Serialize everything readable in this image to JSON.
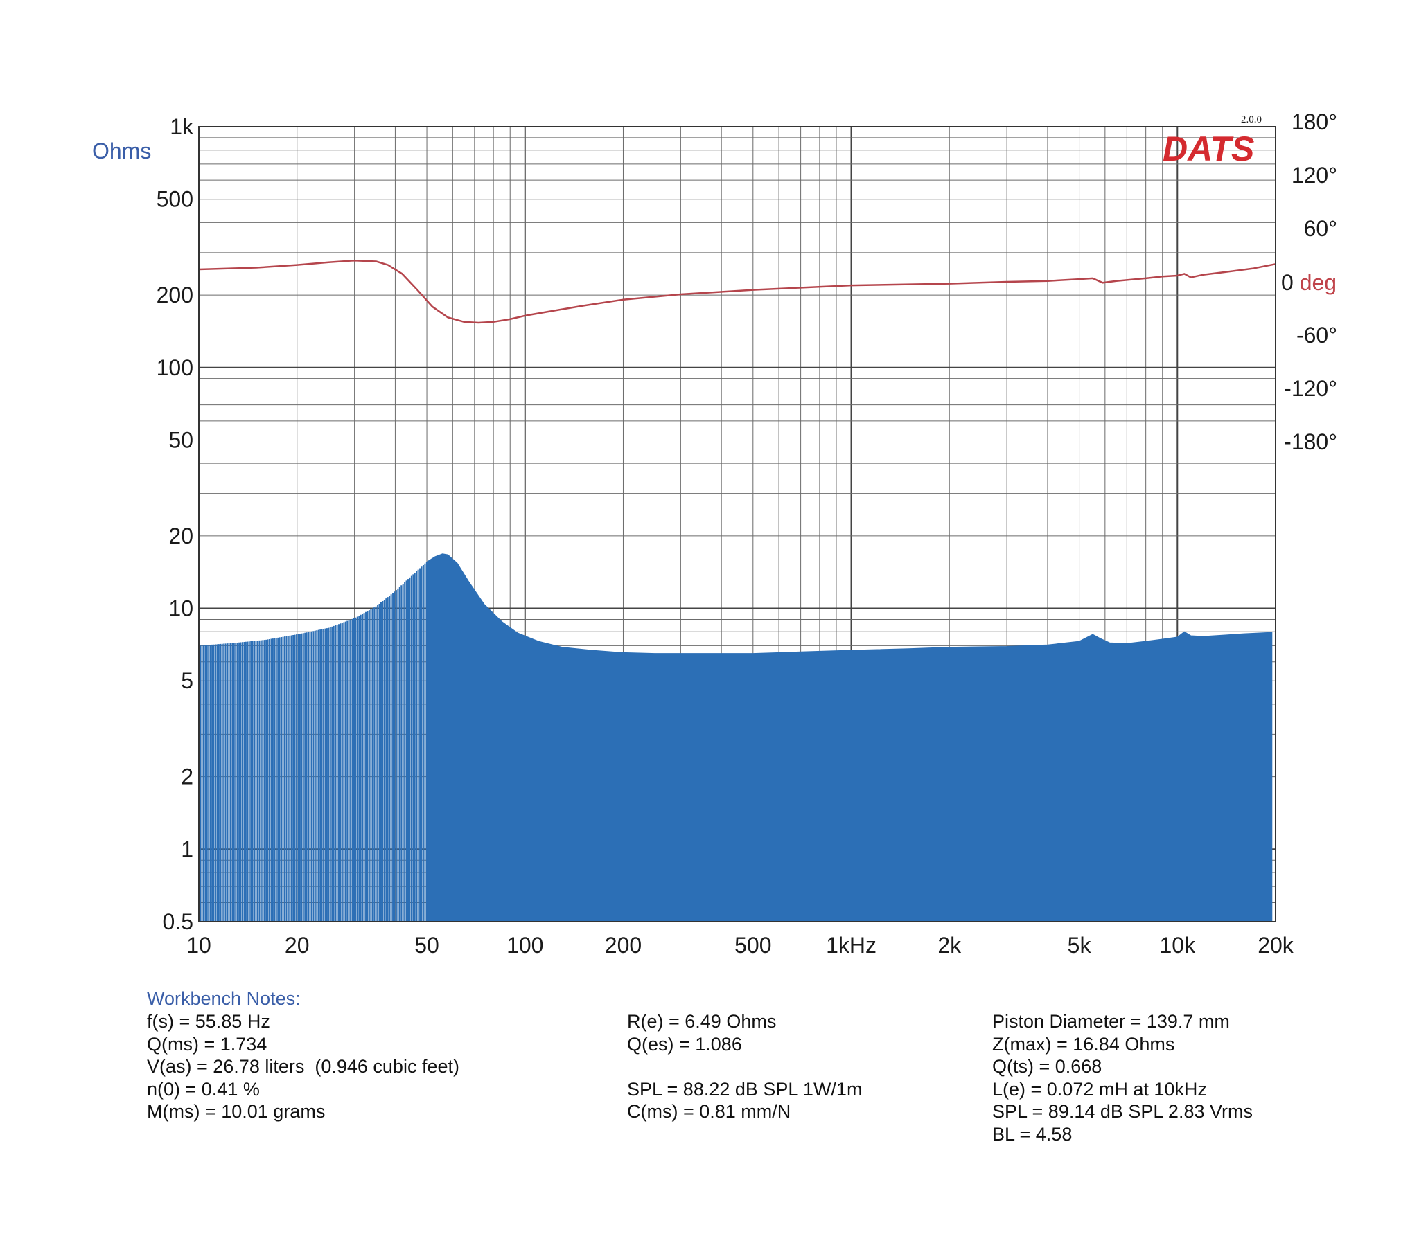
{
  "logo": {
    "text": "DATS",
    "version": "2.0.0",
    "color": "#d42a2f"
  },
  "colors": {
    "impedance_fill": "#2c6fb6",
    "phase_line": "#b5454c",
    "grid": "#6b6b6b",
    "accent_text": "#3a5ea8",
    "deg_text": "#c0434a"
  },
  "chart_data": {
    "type": "area",
    "title": "",
    "xlabel": "",
    "x_scale": "log",
    "xlim": [
      10,
      20000
    ],
    "x_ticks": [
      {
        "value": 10,
        "label": "10"
      },
      {
        "value": 20,
        "label": "20"
      },
      {
        "value": 50,
        "label": "50"
      },
      {
        "value": 100,
        "label": "100"
      },
      {
        "value": 200,
        "label": "200"
      },
      {
        "value": 500,
        "label": "500"
      },
      {
        "value": 1000,
        "label": "1kHz"
      },
      {
        "value": 2000,
        "label": "2k"
      },
      {
        "value": 5000,
        "label": "5k"
      },
      {
        "value": 10000,
        "label": "10k"
      },
      {
        "value": 20000,
        "label": "20k"
      }
    ],
    "y_left": {
      "label": "Ohms",
      "scale": "log",
      "lim": [
        0.5,
        1000
      ],
      "ticks": [
        {
          "value": 1000,
          "label": "1k"
        },
        {
          "value": 500,
          "label": "500"
        },
        {
          "value": 200,
          "label": "200"
        },
        {
          "value": 100,
          "label": "100"
        },
        {
          "value": 50,
          "label": "50"
        },
        {
          "value": 20,
          "label": "20"
        },
        {
          "value": 10,
          "label": "10"
        },
        {
          "value": 5,
          "label": "5"
        },
        {
          "value": 2,
          "label": "2"
        },
        {
          "value": 1,
          "label": "1"
        },
        {
          "value": 0.5,
          "label": "0.5"
        }
      ]
    },
    "y_right": {
      "label_prefix": "0",
      "label": "deg",
      "ticks": [
        {
          "value": 180,
          "label": "180°"
        },
        {
          "value": 120,
          "label": "120°"
        },
        {
          "value": 60,
          "label": "60°"
        },
        {
          "value": -60,
          "label": "-60°"
        },
        {
          "value": -120,
          "label": "-120°"
        },
        {
          "value": -180,
          "label": "-180°"
        }
      ]
    },
    "series": [
      {
        "type": "area",
        "axis": "left",
        "x": [
          10,
          13,
          16,
          20,
          25,
          30,
          35,
          40,
          45,
          50,
          53,
          55.85,
          58,
          62,
          67,
          75,
          85,
          95,
          110,
          130,
          160,
          200,
          250,
          300,
          400,
          500,
          700,
          1000,
          1500,
          2000,
          3000,
          4000,
          5000,
          5500,
          5800,
          6200,
          7000,
          8000,
          9000,
          10000,
          10500,
          11000,
          12000,
          14000,
          16000,
          19500
        ],
        "y": [
          7.0,
          7.2,
          7.4,
          7.8,
          8.3,
          9.1,
          10.2,
          11.8,
          13.7,
          15.6,
          16.4,
          16.84,
          16.7,
          15.4,
          13.0,
          10.4,
          8.8,
          7.9,
          7.3,
          6.9,
          6.7,
          6.55,
          6.5,
          6.5,
          6.5,
          6.5,
          6.6,
          6.7,
          6.8,
          6.9,
          6.95,
          7.05,
          7.3,
          7.8,
          7.5,
          7.2,
          7.15,
          7.3,
          7.45,
          7.6,
          8.0,
          7.7,
          7.65,
          7.75,
          7.85,
          7.95
        ]
      },
      {
        "type": "line",
        "axis": "right",
        "x": [
          10,
          15,
          20,
          25,
          30,
          35,
          38,
          42,
          47,
          52,
          58,
          65,
          72,
          80,
          90,
          100,
          120,
          150,
          200,
          300,
          500,
          1000,
          2000,
          3000,
          4000,
          5000,
          5500,
          5900,
          6500,
          8000,
          9000,
          10000,
          10500,
          11000,
          12000,
          14000,
          17000,
          20000
        ],
        "y": [
          14,
          16,
          19,
          22,
          24,
          23,
          19,
          9,
          -10,
          -28,
          -40,
          -45,
          -46,
          -45,
          -42,
          -38,
          -33,
          -27,
          -20,
          -14,
          -9,
          -4,
          -2,
          0,
          1,
          3,
          4,
          -1,
          1,
          4,
          6,
          7,
          9,
          5,
          8,
          11,
          15,
          20
        ]
      }
    ]
  },
  "notes": {
    "title": "Workbench Notes:",
    "col1": [
      "f(s) = 55.85 Hz",
      "Q(ms) = 1.734",
      "V(as) = 26.78 liters  (0.946 cubic feet)",
      "n(0) = 0.41 %",
      "M(ms) = 10.01 grams"
    ],
    "col2": [
      "R(e) = 6.49 Ohms",
      "Q(es) = 1.086",
      "",
      "SPL = 88.22 dB SPL 1W/1m",
      "C(ms) = 0.81 mm/N"
    ],
    "col3": [
      "Piston Diameter = 139.7 mm",
      "Z(max) = 16.84 Ohms",
      "Q(ts) = 0.668",
      "L(e) = 0.072 mH at 10kHz",
      "SPL = 89.14 dB SPL 2.83 Vrms",
      "BL = 4.58"
    ]
  }
}
